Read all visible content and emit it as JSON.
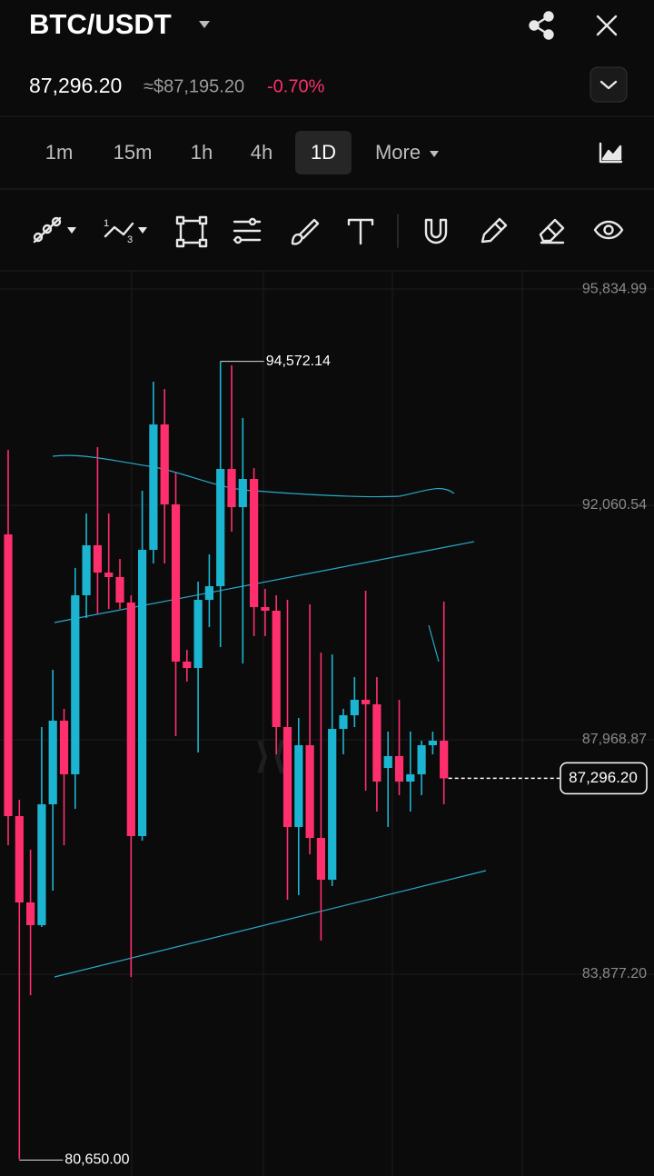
{
  "header": {
    "symbol": "BTC/USDT",
    "price": "87,296.20",
    "usd_price": "≈$87,195.20",
    "change": "-0.70%"
  },
  "timeframes": [
    "1m",
    "15m",
    "1h",
    "4h",
    "1D",
    "More"
  ],
  "selected_timeframe": 4,
  "chart_data": {
    "type": "candlestick",
    "up_color": "#1cb5d1",
    "down_color": "#ff2f6d",
    "ylim": [
      80356,
      96153
    ],
    "yticks": [
      {
        "value": 95834.99,
        "label": "95,834.99"
      },
      {
        "value": 92060.54,
        "label": "92,060.54"
      },
      {
        "value": 87968.87,
        "label": "87,968.87"
      },
      {
        "value": 83877.2,
        "label": "83,877.20"
      }
    ],
    "grid": true,
    "open": [
      91553,
      86637,
      85130,
      84734,
      86843,
      88302,
      87366,
      90491,
      91363,
      90887,
      90808,
      90364,
      86288,
      91284,
      93472,
      92077,
      89333,
      89222,
      90411,
      90649,
      92695,
      92029,
      92521,
      90285,
      90221,
      88191,
      86446,
      87874,
      86256,
      85527,
      88159,
      88397,
      88667,
      88588,
      87477,
      87684,
      87239,
      87366,
      87874,
      87953
    ],
    "high": [
      93028,
      86922,
      86050,
      88191,
      89190,
      88508,
      90967,
      91918,
      93076,
      91918,
      91125,
      90491,
      92315,
      94218,
      94091,
      92632,
      89539,
      90729,
      91204,
      94572.14,
      94503,
      93583,
      92711,
      90602,
      90491,
      90411,
      88350,
      90332,
      89492,
      89460,
      88508,
      89063,
      90570,
      89063,
      88112,
      88667,
      88112,
      87953,
      88112,
      90380
    ],
    "low": [
      86129,
      80650,
      83512,
      84702,
      85336,
      86129,
      86764,
      90094,
      90174,
      90253,
      90253,
      83830,
      86209,
      91046,
      91046,
      88032,
      88984,
      87747,
      89936,
      89587,
      91601,
      89301,
      89777,
      89777,
      87715,
      85178,
      85257,
      85971,
      84464,
      85416,
      87715,
      88191,
      87081,
      86716,
      86446,
      87002,
      86716,
      87002,
      87715,
      86843
    ],
    "close": [
      86637,
      85130,
      84734,
      86843,
      88302,
      87366,
      90491,
      91363,
      90887,
      90808,
      90364,
      86288,
      91284,
      93472,
      92077,
      89333,
      89222,
      90411,
      90649,
      92695,
      92029,
      92521,
      90285,
      90221,
      88191,
      86446,
      87874,
      86256,
      85527,
      88159,
      88397,
      88667,
      88588,
      87239,
      87684,
      87239,
      87366,
      87874,
      87953,
      87296.2
    ],
    "annotations": {
      "high": {
        "value": 94572.14,
        "label": "94,572.14"
      },
      "low": {
        "value": 80650.0,
        "label": "80,650.00"
      },
      "last": {
        "value": 87296.2,
        "label": "87,296.20"
      }
    }
  }
}
